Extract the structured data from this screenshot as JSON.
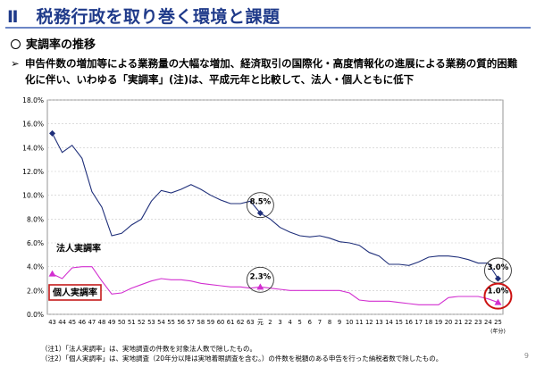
{
  "page": {
    "title": "Ⅱ　税務行政を取り巻く環境と課題",
    "section": "実調率の推移",
    "bullet_arrow": "➢",
    "bullet_text": "申告件数の増加等による業務量の大幅な増加、経済取引の国際化・高度情報化の進展による業務の質的困難化に伴い、いわゆる「実調率」(注)は、平成元年と比較して、法人・個人ともに低下",
    "note1": "（注1）「法人実調率」は、実地調査の件数を対象法人数で除したもの。",
    "note2": "（注2）「個人実調率」は、実地調査（20年分以降は実地着眼調査を含む。）の件数を税額のある申告を行った納税者数で除したもの。",
    "page_number": "9"
  },
  "chart_data": {
    "type": "line",
    "x": [
      "43",
      "44",
      "45",
      "46",
      "47",
      "48",
      "49",
      "50",
      "51",
      "52",
      "53",
      "54",
      "55",
      "56",
      "57",
      "58",
      "59",
      "60",
      "61",
      "62",
      "63",
      "元",
      "2",
      "3",
      "4",
      "5",
      "6",
      "7",
      "8",
      "9",
      "10",
      "11",
      "12",
      "13",
      "14",
      "15",
      "16",
      "17",
      "18",
      "19",
      "20",
      "21",
      "22",
      "23",
      "24",
      "25"
    ],
    "x_unit": "(年分)",
    "ylim": [
      0,
      18
    ],
    "yticks": [
      "0.0%",
      "2.0%",
      "4.0%",
      "6.0%",
      "8.0%",
      "10.0%",
      "12.0%",
      "14.0%",
      "16.0%",
      "18.0%"
    ],
    "grid": true,
    "series": [
      {
        "name": "法人実調率",
        "color": "#1f2f7a",
        "values": [
          15.2,
          13.6,
          14.2,
          13.1,
          10.3,
          9.0,
          6.6,
          6.8,
          7.5,
          8.0,
          9.5,
          10.4,
          10.2,
          10.5,
          10.9,
          10.5,
          10.0,
          9.6,
          9.3,
          9.3,
          9.5,
          8.5,
          8.0,
          7.3,
          6.9,
          6.6,
          6.5,
          6.6,
          6.4,
          6.1,
          6.0,
          5.8,
          5.2,
          4.9,
          4.2,
          4.2,
          4.1,
          4.4,
          4.8,
          4.9,
          4.9,
          4.8,
          4.6,
          4.3,
          4.3,
          3.0
        ]
      },
      {
        "name": "個人実調率",
        "color": "#d22fd0",
        "values": [
          3.4,
          3.0,
          3.9,
          4.0,
          4.0,
          2.8,
          1.7,
          1.8,
          2.2,
          2.5,
          2.8,
          3.0,
          2.9,
          2.9,
          2.8,
          2.6,
          2.5,
          2.4,
          2.3,
          2.3,
          2.2,
          2.3,
          2.2,
          2.1,
          2.0,
          2.0,
          2.0,
          2.0,
          2.0,
          2.0,
          1.8,
          1.2,
          1.1,
          1.1,
          1.1,
          1.0,
          0.9,
          0.8,
          0.8,
          0.8,
          1.4,
          1.5,
          1.5,
          1.5,
          1.3,
          1.0
        ]
      }
    ],
    "annotations": [
      {
        "text": "8.5%",
        "series": 0,
        "x": "元",
        "value": 8.5
      },
      {
        "text": "2.3%",
        "series": 1,
        "x": "元",
        "value": 2.3
      },
      {
        "text": "3.0%",
        "series": 0,
        "x": "25",
        "value": 3.0
      },
      {
        "text": "1.0%",
        "series": 1,
        "x": "25",
        "value": 1.0
      }
    ]
  }
}
